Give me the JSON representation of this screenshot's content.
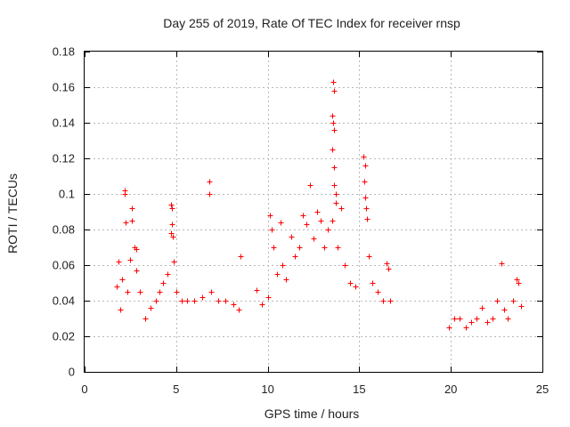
{
  "chart_data": {
    "type": "scatter",
    "title": "Day 255 of 2019, Rate Of TEC Index for receiver rnsp",
    "xlabel": "GPS time / hours",
    "ylabel": "ROTI / TECUs",
    "xlim": [
      0,
      25
    ],
    "ylim": [
      0,
      0.18
    ],
    "x_ticks": [
      0,
      5,
      10,
      15,
      20,
      25
    ],
    "x_tick_labels": [
      "0",
      "5",
      "10",
      "15",
      "20",
      "25"
    ],
    "y_ticks": [
      0,
      0.02,
      0.04,
      0.06,
      0.08,
      0.1,
      0.12,
      0.14,
      0.16,
      0.18
    ],
    "y_tick_labels": [
      "0",
      "0.02",
      "0.04",
      "0.06",
      "0.08",
      "0.1",
      "0.12",
      "0.14",
      "0.16",
      "0.18"
    ],
    "grid": true,
    "marker": "+",
    "color": "#ff0000",
    "series": [
      {
        "name": "ROTI",
        "points": [
          [
            1.75,
            0.048
          ],
          [
            1.85,
            0.062
          ],
          [
            1.95,
            0.035
          ],
          [
            2.05,
            0.052
          ],
          [
            2.2,
            0.102
          ],
          [
            2.2,
            0.1
          ],
          [
            2.25,
            0.084
          ],
          [
            2.35,
            0.045
          ],
          [
            2.5,
            0.063
          ],
          [
            2.6,
            0.092
          ],
          [
            2.6,
            0.085
          ],
          [
            2.7,
            0.07
          ],
          [
            2.8,
            0.069
          ],
          [
            2.8,
            0.057
          ],
          [
            3.0,
            0.045
          ],
          [
            3.3,
            0.03
          ],
          [
            3.6,
            0.036
          ],
          [
            3.9,
            0.04
          ],
          [
            4.1,
            0.045
          ],
          [
            4.3,
            0.05
          ],
          [
            4.5,
            0.055
          ],
          [
            4.7,
            0.094
          ],
          [
            4.75,
            0.092
          ],
          [
            4.75,
            0.083
          ],
          [
            4.7,
            0.078
          ],
          [
            4.8,
            0.076
          ],
          [
            4.85,
            0.062
          ],
          [
            5.0,
            0.045
          ],
          [
            5.3,
            0.04
          ],
          [
            5.6,
            0.04
          ],
          [
            6.0,
            0.04
          ],
          [
            6.4,
            0.042
          ],
          [
            6.8,
            0.107
          ],
          [
            6.8,
            0.1
          ],
          [
            6.9,
            0.045
          ],
          [
            7.3,
            0.04
          ],
          [
            7.7,
            0.04
          ],
          [
            8.1,
            0.038
          ],
          [
            8.5,
            0.065
          ],
          [
            8.4,
            0.035
          ],
          [
            9.4,
            0.046
          ],
          [
            9.7,
            0.038
          ],
          [
            10.0,
            0.042
          ],
          [
            10.1,
            0.088
          ],
          [
            10.2,
            0.08
          ],
          [
            10.3,
            0.07
          ],
          [
            10.5,
            0.055
          ],
          [
            10.7,
            0.084
          ],
          [
            10.8,
            0.06
          ],
          [
            11.0,
            0.052
          ],
          [
            11.3,
            0.076
          ],
          [
            11.5,
            0.065
          ],
          [
            11.7,
            0.07
          ],
          [
            11.9,
            0.088
          ],
          [
            12.1,
            0.083
          ],
          [
            12.3,
            0.105
          ],
          [
            12.5,
            0.075
          ],
          [
            12.7,
            0.09
          ],
          [
            12.9,
            0.085
          ],
          [
            13.1,
            0.07
          ],
          [
            13.3,
            0.08
          ],
          [
            13.5,
            0.085
          ],
          [
            13.55,
            0.163
          ],
          [
            13.6,
            0.158
          ],
          [
            13.5,
            0.144
          ],
          [
            13.55,
            0.14
          ],
          [
            13.6,
            0.136
          ],
          [
            13.5,
            0.125
          ],
          [
            13.6,
            0.115
          ],
          [
            13.6,
            0.105
          ],
          [
            13.7,
            0.1
          ],
          [
            13.7,
            0.095
          ],
          [
            13.8,
            0.07
          ],
          [
            14.0,
            0.092
          ],
          [
            14.2,
            0.06
          ],
          [
            14.5,
            0.05
          ],
          [
            14.8,
            0.048
          ],
          [
            15.2,
            0.121
          ],
          [
            15.3,
            0.116
          ],
          [
            15.25,
            0.107
          ],
          [
            15.3,
            0.098
          ],
          [
            15.35,
            0.092
          ],
          [
            15.4,
            0.086
          ],
          [
            15.5,
            0.065
          ],
          [
            15.7,
            0.05
          ],
          [
            16.0,
            0.045
          ],
          [
            16.3,
            0.04
          ],
          [
            16.5,
            0.061
          ],
          [
            16.6,
            0.058
          ],
          [
            16.7,
            0.04
          ],
          [
            19.9,
            0.025
          ],
          [
            20.2,
            0.03
          ],
          [
            20.5,
            0.03
          ],
          [
            20.8,
            0.025
          ],
          [
            21.1,
            0.028
          ],
          [
            21.4,
            0.03
          ],
          [
            21.7,
            0.036
          ],
          [
            22.0,
            0.028
          ],
          [
            22.3,
            0.03
          ],
          [
            22.5,
            0.04
          ],
          [
            22.75,
            0.061
          ],
          [
            22.9,
            0.035
          ],
          [
            23.1,
            0.03
          ],
          [
            23.4,
            0.04
          ],
          [
            23.6,
            0.052
          ],
          [
            23.7,
            0.05
          ],
          [
            23.85,
            0.037
          ]
        ]
      }
    ]
  }
}
